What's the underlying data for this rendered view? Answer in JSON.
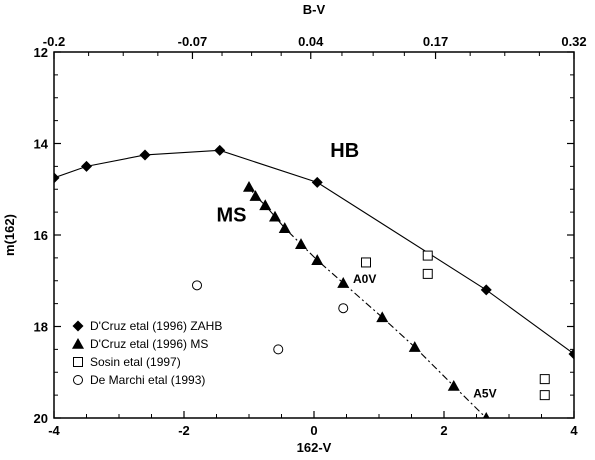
{
  "chart_data": {
    "type": "scatter",
    "xlabel": "162-V",
    "ylabel": "m(162)",
    "top_xlabel": "B-V",
    "xlim": [
      -4,
      4
    ],
    "ylim": [
      12,
      20
    ],
    "y_inverted": true,
    "x_ticks": [
      "-4",
      "-2",
      "0",
      "2",
      "4"
    ],
    "y_ticks": [
      "12",
      "14",
      "16",
      "18",
      "20"
    ],
    "top_ticks": [
      {
        "label": "-0.2",
        "x": -4.0
      },
      {
        "label": "-0.07",
        "x": -1.87
      },
      {
        "label": "0.04",
        "x": -0.05
      },
      {
        "label": "0.17",
        "x": 1.87
      },
      {
        "label": "0.32",
        "x": 4.0
      }
    ],
    "legend_position": "bottom-left",
    "series": [
      {
        "name": "D'Cruz etal (1996) ZAHB",
        "marker": "diamond",
        "line": "solid",
        "points": [
          [
            -4.0,
            14.75
          ],
          [
            -3.5,
            14.5
          ],
          [
            -2.6,
            14.25
          ],
          [
            -1.45,
            14.15
          ],
          [
            0.05,
            14.85
          ],
          [
            2.65,
            17.2
          ],
          [
            4.0,
            18.6
          ]
        ]
      },
      {
        "name": "D'Cruz etal (1996) MS",
        "marker": "triangle",
        "line": "dashdot",
        "points": [
          [
            -1.0,
            14.95
          ],
          [
            -0.9,
            15.15
          ],
          [
            -0.75,
            15.35
          ],
          [
            -0.6,
            15.6
          ],
          [
            -0.45,
            15.85
          ],
          [
            -0.2,
            16.2
          ],
          [
            0.05,
            16.55
          ],
          [
            0.45,
            17.05
          ],
          [
            1.05,
            17.8
          ],
          [
            1.55,
            18.45
          ],
          [
            2.15,
            19.3
          ],
          [
            2.65,
            20.0
          ]
        ]
      },
      {
        "name": "Sosin etal (1997)",
        "marker": "square",
        "line": "none",
        "points": [
          [
            0.8,
            16.6
          ],
          [
            1.75,
            16.45
          ],
          [
            1.75,
            16.85
          ],
          [
            3.55,
            19.15
          ],
          [
            3.55,
            19.5
          ]
        ]
      },
      {
        "name": "De Marchi etal (1993)",
        "marker": "circle",
        "line": "none",
        "points": [
          [
            -1.8,
            17.1
          ],
          [
            0.45,
            17.6
          ],
          [
            -0.55,
            18.5
          ]
        ]
      }
    ],
    "annotations": [
      {
        "text": "HB",
        "x": 0.25,
        "y": 14.3
      },
      {
        "text": "MS",
        "x": -1.5,
        "y": 15.7
      },
      {
        "text": "A0V",
        "x": 0.6,
        "y": 17.05
      },
      {
        "text": "A5V",
        "x": 2.45,
        "y": 19.55
      }
    ]
  }
}
